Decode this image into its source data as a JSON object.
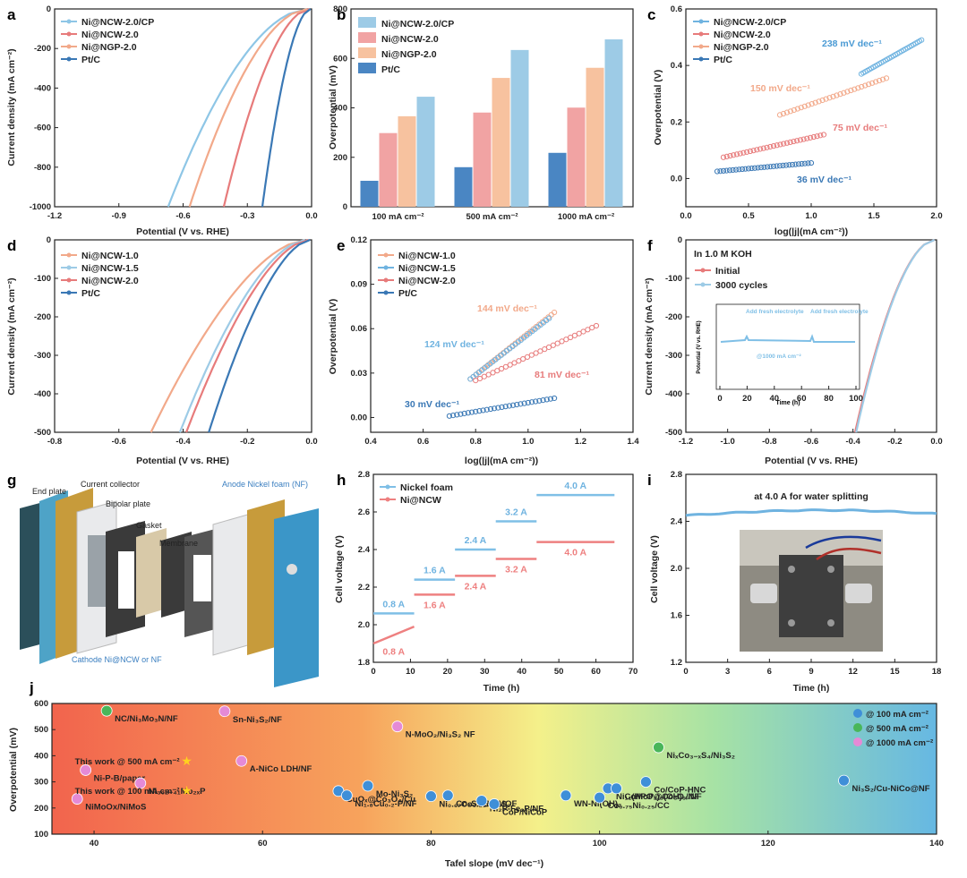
{
  "panels": {
    "a": {
      "label": "a",
      "xlabel": "Potential (V vs. RHE)",
      "ylabel": "Current density (mA cm⁻²)",
      "xticks": [
        "-1.2",
        "-0.9",
        "-0.6",
        "-0.3",
        "0.0"
      ],
      "yticks": [
        "0",
        "-200",
        "-400",
        "-600",
        "-800",
        "-1000"
      ],
      "legend": [
        "Ni@NCW-2.0/CP",
        "Ni@NCW-2.0",
        "Ni@NGP-2.0",
        "Pt/C"
      ]
    },
    "b": {
      "label": "b",
      "ylabel": "Overpotential (mV)",
      "yticks": [
        "0",
        "200",
        "400",
        "600",
        "800"
      ],
      "groups": [
        "100 mA cm⁻²",
        "500 mA cm⁻²",
        "1000 mA cm⁻²"
      ],
      "legend": [
        "Ni@NCW-2.0/CP",
        "Ni@NCW-2.0",
        "Ni@NGP-2.0",
        "Pt/C"
      ]
    },
    "c": {
      "label": "c",
      "xlabel": "log(|j|(mA cm⁻²))",
      "ylabel": "Overpotential (V)",
      "xticks": [
        "0.0",
        "0.5",
        "1.0",
        "1.5",
        "2.0"
      ],
      "yticks": [
        "0.0",
        "0.2",
        "0.4",
        "0.6"
      ],
      "legend": [
        "Ni@NCW-2.0/CP",
        "Ni@NCW-2.0",
        "Ni@NGP-2.0",
        "Pt/C"
      ],
      "annotations": [
        "238 mV dec⁻¹",
        "150 mV dec⁻¹",
        "75 mV dec⁻¹",
        "36 mV dec⁻¹"
      ]
    },
    "d": {
      "label": "d",
      "xlabel": "Potential (V vs. RHE)",
      "ylabel": "Current density (mA cm⁻²)",
      "xticks": [
        "-0.8",
        "-0.6",
        "-0.4",
        "-0.2",
        "0.0"
      ],
      "yticks": [
        "0",
        "-100",
        "-200",
        "-300",
        "-400",
        "-500"
      ],
      "legend": [
        "Ni@NCW-1.0",
        "Ni@NCW-1.5",
        "Ni@NCW-2.0",
        "Pt/C"
      ]
    },
    "e": {
      "label": "e",
      "xlabel": "log(|j|(mA cm⁻²))",
      "ylabel": "Overpotential (V)",
      "xticks": [
        "0.4",
        "0.6",
        "0.8",
        "1.0",
        "1.2",
        "1.4"
      ],
      "yticks": [
        "0.00",
        "0.03",
        "0.06",
        "0.09",
        "0.12"
      ],
      "legend": [
        "Ni@NCW-1.0",
        "Ni@NCW-1.5",
        "Ni@NCW-2.0",
        "Pt/C"
      ],
      "annotations": [
        "144 mV dec⁻¹",
        "124 mV dec⁻¹",
        "81 mV dec⁻¹",
        "30 mV dec⁻¹"
      ]
    },
    "f": {
      "label": "f",
      "xlabel": "Potential (V vs. RHE)",
      "ylabel": "Current density (mA cm⁻²)",
      "xticks": [
        "-1.2",
        "-1.0",
        "-0.8",
        "-0.6",
        "-0.4",
        "-0.2",
        "0.0"
      ],
      "yticks": [
        "0",
        "-100",
        "-200",
        "-300",
        "-400",
        "-500"
      ],
      "legend_title": "In 1.0 M KOH",
      "legend": [
        "Initial",
        "3000 cycles"
      ],
      "inset": {
        "ylabel": "Potential (V vs. RHE)",
        "xlabel": "Time (h)",
        "xticks": [
          "0",
          "20",
          "40",
          "60",
          "80",
          "100"
        ],
        "add1": "Add fresh electrolyte",
        "add2": "Add fresh electrolyte",
        "note": "@1000 mA cm⁻²"
      }
    },
    "g": {
      "label": "g",
      "parts": [
        "End plate",
        "Current collector",
        "Bipolar plate",
        "Gasket",
        "Membrane",
        "Anode Nickel foam (NF)",
        "Cathode Ni@NCW or NF"
      ]
    },
    "h": {
      "label": "h",
      "xlabel": "Time (h)",
      "ylabel": "Cell voltage (V)",
      "xticks": [
        "0",
        "10",
        "20",
        "30",
        "40",
        "50",
        "60",
        "70"
      ],
      "yticks": [
        "1.8",
        "2.0",
        "2.2",
        "2.4",
        "2.6",
        "2.8"
      ],
      "legend": [
        "Nickel foam",
        "Ni@NCW"
      ],
      "steps_nf": [
        "0.8 A",
        "1.6 A",
        "2.4 A",
        "3.2 A",
        "4.0 A"
      ],
      "steps_ncw": [
        "0.8 A",
        "1.6 A",
        "2.4 A",
        "3.2 A",
        "4.0 A"
      ]
    },
    "i": {
      "label": "i",
      "xlabel": "Time (h)",
      "ylabel": "Cell voltage (V)",
      "xticks": [
        "0",
        "3",
        "6",
        "9",
        "12",
        "15",
        "18"
      ],
      "yticks": [
        "1.2",
        "1.6",
        "2.0",
        "2.4",
        "2.8"
      ],
      "title": "at 4.0 A for water splitting"
    },
    "j": {
      "label": "j",
      "xlabel": "Tafel slope (mV dec⁻¹)",
      "ylabel": "Overpotential (mV)",
      "xticks": [
        "40",
        "60",
        "80",
        "100",
        "120",
        "140"
      ],
      "yticks": [
        "100",
        "200",
        "300",
        "400",
        "500",
        "600"
      ],
      "legend": [
        "@ 100 mA cm⁻²",
        "@ 500 mA cm⁻²",
        "@ 1000 mA cm⁻²"
      ],
      "this_work_500": "This work @ 500 mA cm⁻²",
      "this_work_100": "This work @ 100 mA cm⁻²"
    }
  },
  "chart_data": [
    {
      "panel": "a",
      "type": "line",
      "xlabel": "Potential (V vs. RHE)",
      "ylabel": "Current density (mA cm⁻²)",
      "xlim": [
        -1.2,
        0.0
      ],
      "ylim": [
        -1000,
        0
      ],
      "series": [
        {
          "name": "Ni@NCW-2.0/CP",
          "color": "#8ec6e6",
          "onset": -0.02,
          "v1000": -0.67
        },
        {
          "name": "Ni@NCW-2.0",
          "color": "#e77b7b",
          "onset": -0.01,
          "v1000": -0.41
        },
        {
          "name": "Ni@NGP-2.0",
          "color": "#f2a98a",
          "onset": -0.02,
          "v1000": -0.57
        },
        {
          "name": "Pt/C",
          "color": "#3a78b5",
          "onset": -0.005,
          "v1000": -0.23
        }
      ]
    },
    {
      "panel": "b",
      "type": "bar",
      "categories": [
        "100 mA cm⁻²",
        "500 mA cm⁻²",
        "1000 mA cm⁻²"
      ],
      "ylabel": "Overpotential (mV)",
      "ylim": [
        0,
        800
      ],
      "series": [
        {
          "name": "Pt/C",
          "color": "#4a86c3",
          "values": [
            105,
            160,
            218
          ]
        },
        {
          "name": "Ni@NCW-2.0",
          "color": "#f1a3a3",
          "values": [
            298,
            381,
            401
          ]
        },
        {
          "name": "Ni@NGP-2.0",
          "color": "#f7c29f",
          "values": [
            366,
            521,
            562
          ]
        },
        {
          "name": "Ni@NCW-2.0/CP",
          "color": "#9dcbe6",
          "values": [
            445,
            634,
            677
          ]
        }
      ]
    },
    {
      "panel": "c",
      "type": "scatter",
      "xlabel": "log(|j|(mA cm⁻²))",
      "ylabel": "Overpotential (V)",
      "xlim": [
        0.0,
        2.0
      ],
      "ylim": [
        -0.1,
        0.6
      ],
      "series": [
        {
          "name": "Ni@NCW-2.0/CP",
          "color": "#6fb3e0",
          "x0": 1.4,
          "x1": 1.88,
          "y0": 0.37,
          "y1": 0.49
        },
        {
          "name": "Ni@NCW-2.0",
          "color": "#e77b7b",
          "x0": 0.3,
          "x1": 1.1,
          "y0": 0.075,
          "y1": 0.155
        },
        {
          "name": "Ni@NGP-2.0",
          "color": "#f2a98a",
          "x0": 0.75,
          "x1": 1.6,
          "y0": 0.225,
          "y1": 0.355
        },
        {
          "name": "Pt/C",
          "color": "#3a78b5",
          "x0": 0.25,
          "x1": 1.0,
          "y0": 0.025,
          "y1": 0.055
        }
      ]
    },
    {
      "panel": "d",
      "type": "line",
      "xlabel": "Potential (V vs. RHE)",
      "ylabel": "Current density (mA cm⁻²)",
      "xlim": [
        -0.8,
        0.0
      ],
      "ylim": [
        -500,
        0
      ],
      "series": [
        {
          "name": "Ni@NCW-1.0",
          "color": "#f2a98a",
          "onset": -0.02,
          "v500": -0.5
        },
        {
          "name": "Ni@NCW-1.5",
          "color": "#9dcbe6",
          "onset": -0.02,
          "v500": -0.41
        },
        {
          "name": "Ni@NCW-2.0",
          "color": "#e77b7b",
          "onset": -0.01,
          "v500": -0.39
        },
        {
          "name": "Pt/C",
          "color": "#3a78b5",
          "onset": -0.005,
          "v500": -0.32
        }
      ]
    },
    {
      "panel": "e",
      "type": "scatter",
      "xlabel": "log(|j|(mA cm⁻²))",
      "ylabel": "Overpotential (V)",
      "xlim": [
        0.4,
        1.4
      ],
      "ylim": [
        -0.01,
        0.12
      ],
      "series": [
        {
          "name": "Ni@NCW-1.0",
          "color": "#f2a98a",
          "x0": 0.78,
          "x1": 1.1,
          "y0": 0.026,
          "y1": 0.071
        },
        {
          "name": "Ni@NCW-1.5",
          "color": "#6fb3e0",
          "x0": 0.78,
          "x1": 1.08,
          "y0": 0.026,
          "y1": 0.067
        },
        {
          "name": "Ni@NCW-2.0",
          "color": "#e77b7b",
          "x0": 0.8,
          "x1": 1.26,
          "y0": 0.025,
          "y1": 0.062
        },
        {
          "name": "Pt/C",
          "color": "#3a78b5",
          "x0": 0.7,
          "x1": 1.1,
          "y0": 0.001,
          "y1": 0.013
        }
      ]
    },
    {
      "panel": "f",
      "type": "line",
      "xlabel": "Potential (V vs. RHE)",
      "ylabel": "Current density (mA cm⁻²)",
      "xlim": [
        -1.2,
        0.0
      ],
      "ylim": [
        -500,
        0
      ],
      "series": [
        {
          "name": "Initial",
          "color": "#e77b7b",
          "v500": -0.39
        },
        {
          "name": "3000 cycles",
          "color": "#9dcbe6",
          "v500": -0.385
        }
      ]
    },
    {
      "panel": "h",
      "type": "line",
      "xlabel": "Time (h)",
      "ylabel": "Cell voltage (V)",
      "xlim": [
        0,
        70
      ],
      "ylim": [
        1.8,
        2.8
      ],
      "series": [
        {
          "name": "Nickel foam",
          "color": "#7fbfe6",
          "segments": [
            [
              0,
              11,
              2.06
            ],
            [
              11,
              22,
              2.24
            ],
            [
              22,
              33,
              2.4
            ],
            [
              33,
              44,
              2.55
            ],
            [
              44,
              65,
              2.69
            ]
          ]
        },
        {
          "name": "Ni@NCW",
          "color": "#ee8080",
          "segments": [
            [
              0,
              11,
              1.9,
              1.99
            ],
            [
              11,
              22,
              2.16
            ],
            [
              22,
              33,
              2.26
            ],
            [
              33,
              44,
              2.35
            ],
            [
              44,
              65,
              2.44
            ]
          ]
        }
      ]
    },
    {
      "panel": "i",
      "type": "line",
      "xlabel": "Time (h)",
      "ylabel": "Cell voltage (V)",
      "xlim": [
        0,
        18
      ],
      "ylim": [
        1.2,
        2.8
      ],
      "series": [
        {
          "color": "#6fb3e0",
          "y0": 2.45,
          "y1": 2.5
        }
      ]
    },
    {
      "panel": "j",
      "type": "scatter",
      "xlabel": "Tafel slope (mV dec⁻¹)",
      "ylabel": "Overpotential (mV)",
      "xlim": [
        35,
        140
      ],
      "ylim": [
        100,
        600
      ],
      "points": [
        {
          "label": "NC/Ni₃Mo₃N/NF",
          "x": 41.5,
          "y": 572,
          "c": "g"
        },
        {
          "label": "Sn-Ni₃S₂/NF",
          "x": 55.5,
          "y": 570,
          "c": "p"
        },
        {
          "label": "N-MoO₂/Ni₃S₂ NF",
          "x": 76,
          "y": 512,
          "c": "p"
        },
        {
          "label": "A-NiCo LDH/NF",
          "x": 57.5,
          "y": 380,
          "c": "p"
        },
        {
          "label": "Ni-P-B/paper",
          "x": 39,
          "y": 345,
          "c": "p"
        },
        {
          "label": "Ni₃₀₂₋₄₁Mo₂ₓP",
          "x": 45.5,
          "y": 295,
          "c": "p"
        },
        {
          "label": "NiMoOx/NiMoS",
          "x": 38,
          "y": 235,
          "c": "p"
        },
        {
          "label": "Mo-Ni₃S₂",
          "x": 72.5,
          "y": 285,
          "c": "b"
        },
        {
          "label": "CuOₓ@Co₃O₄/Cu",
          "x": 69,
          "y": 265,
          "c": "b"
        },
        {
          "label": "Ni₁.₈Cu₀.₂-P/NF",
          "x": 70,
          "y": 248,
          "c": "b"
        },
        {
          "label": "Co₃S₄/EC-MOF",
          "x": 82,
          "y": 248,
          "c": "b"
        },
        {
          "label": "Ni₀.₆₇Co₀.₃₃/Ni₃S₂",
          "x": 80,
          "y": 245,
          "c": "b"
        },
        {
          "label": "Ni₂P-Fe₂P/NF",
          "x": 86,
          "y": 228,
          "c": "b"
        },
        {
          "label": "CoP/NiCoP",
          "x": 87.5,
          "y": 215,
          "c": "b"
        },
        {
          "label": "WN-Ni(OH)₂",
          "x": 96,
          "y": 248,
          "c": "b"
        },
        {
          "label": "Co₀.₇₅Ni₀.₂₅/CC",
          "x": 100,
          "y": 240,
          "c": "b"
        },
        {
          "label": "Ni₁₁(HPO₃)₈(OH)₆/NF",
          "x": 101,
          "y": 275,
          "c": "b"
        },
        {
          "label": "CoMoP@Co₃O₄/NF",
          "x": 102,
          "y": 275,
          "c": "b"
        },
        {
          "label": "NiₓCo₃₋ₓS₄/Ni₃S₂",
          "x": 107,
          "y": 432,
          "c": "g"
        },
        {
          "label": "Co/CoP-HNC",
          "x": 105.5,
          "y": 300,
          "c": "b"
        },
        {
          "label": "Ni₃S₂/Cu-NiCo@NF",
          "x": 129,
          "y": 305,
          "c": "b"
        },
        {
          "label": "This work @ 500 mA cm⁻²",
          "x": 51,
          "y": 380,
          "c": "star"
        },
        {
          "label": "This work @ 100 mA cm⁻²",
          "x": 51,
          "y": 268,
          "c": "star"
        }
      ]
    }
  ]
}
